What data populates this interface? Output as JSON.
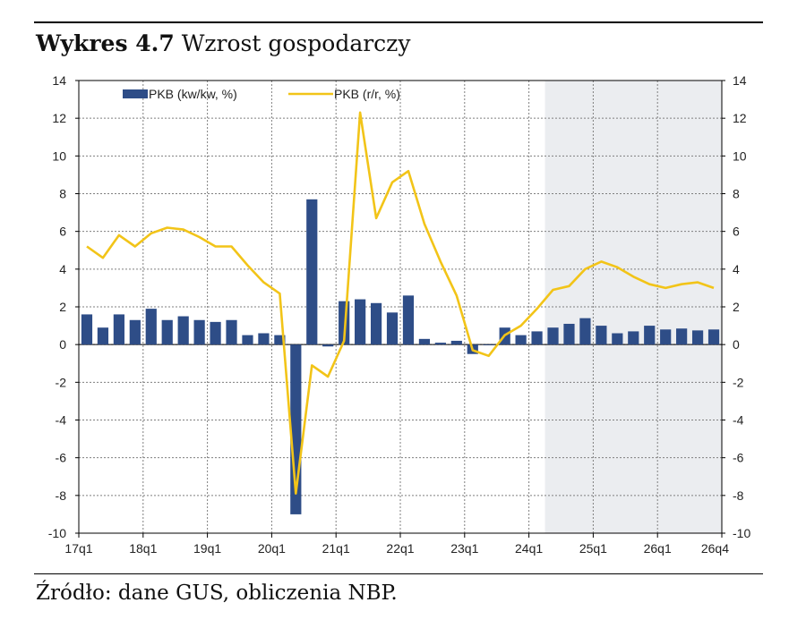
{
  "title": {
    "prefix": "Wykres 4.7",
    "text": "Wzrost gospodarczy"
  },
  "source": "Źródło: dane GUS, obliczenia NBP.",
  "colors": {
    "bars": "#2e4d87",
    "line": "#f2c418",
    "forecast_shade": "#ebedf0",
    "grid": "#7f7f7f"
  },
  "chart_data": {
    "type": "bar+line",
    "legend_placement": "top-left",
    "grid": true,
    "forecast_shading_start": "24q2",
    "ylim": [
      -10,
      14
    ],
    "yticks": [
      "-10",
      "-8",
      "-6",
      "-4",
      "-2",
      "0",
      "2",
      "4",
      "6",
      "8",
      "10",
      "12",
      "14"
    ],
    "x_tick_labels": [
      "17q1",
      "18q1",
      "19q1",
      "20q1",
      "21q1",
      "22q1",
      "23q1",
      "24q1",
      "25q1",
      "26q1",
      "26q4"
    ],
    "categories": [
      "17q1",
      "17q2",
      "17q3",
      "17q4",
      "18q1",
      "18q2",
      "18q3",
      "18q4",
      "19q1",
      "19q2",
      "19q3",
      "19q4",
      "20q1",
      "20q2",
      "20q3",
      "20q4",
      "21q1",
      "21q2",
      "21q3",
      "21q4",
      "22q1",
      "22q2",
      "22q3",
      "22q4",
      "23q1",
      "23q2",
      "23q3",
      "23q4",
      "24q1",
      "24q2",
      "24q3",
      "24q4",
      "25q1",
      "25q2",
      "25q3",
      "25q4",
      "26q1",
      "26q2",
      "26q3",
      "26q4"
    ],
    "series": [
      {
        "name": "PKB (kw/kw, %)",
        "kind": "bar",
        "values": [
          1.6,
          0.9,
          1.6,
          1.3,
          1.9,
          1.3,
          1.5,
          1.3,
          1.2,
          1.3,
          0.5,
          0.6,
          0.5,
          -9.0,
          7.7,
          -0.1,
          2.3,
          2.4,
          2.2,
          1.7,
          2.6,
          0.3,
          0.1,
          0.2,
          -0.5,
          0.0,
          0.9,
          0.5,
          0.7,
          0.9,
          1.1,
          1.4,
          1.0,
          0.6,
          0.7,
          1.0,
          0.8,
          0.85,
          0.75,
          0.8
        ]
      },
      {
        "name": "PKB (r/r, %)",
        "kind": "line",
        "values": [
          5.2,
          4.6,
          5.8,
          5.2,
          5.9,
          6.2,
          6.1,
          5.7,
          5.2,
          5.2,
          4.2,
          3.3,
          2.7,
          -7.9,
          -1.1,
          -1.7,
          0.2,
          12.3,
          6.7,
          8.6,
          9.2,
          6.4,
          4.4,
          2.6,
          -0.3,
          -0.6,
          0.5,
          1.0,
          1.9,
          2.9,
          3.1,
          4.0,
          4.4,
          4.1,
          3.6,
          3.2,
          3.0,
          3.2,
          3.3,
          3.0
        ]
      }
    ]
  }
}
